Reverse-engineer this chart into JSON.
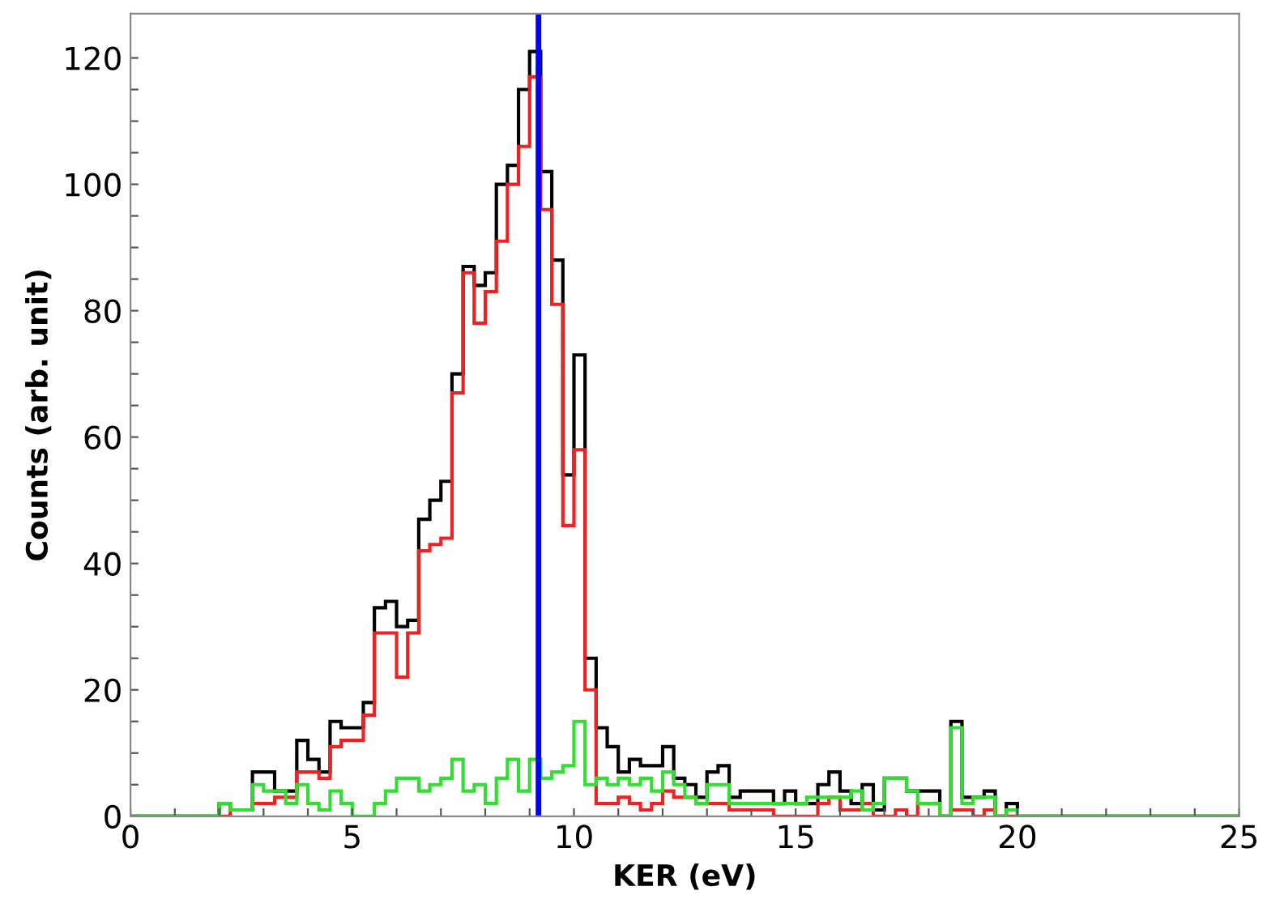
{
  "chart_data": {
    "type": "histogram",
    "xlabel": "KER (eV)",
    "ylabel": "Counts (arb. unit)",
    "bins": [
      0,
      0.25,
      0.5,
      0.75,
      1,
      1.25,
      1.5,
      1.75,
      2,
      2.25,
      2.5,
      2.75,
      3,
      3.25,
      3.5,
      3.75,
      4,
      4.25,
      4.5,
      4.75,
      5,
      5.25,
      5.5,
      5.75,
      6,
      6.25,
      6.5,
      6.75,
      7,
      7.25,
      7.5,
      7.75,
      8,
      8.25,
      8.5,
      8.75,
      9,
      9.25,
      9.5,
      9.75,
      10,
      10.25,
      10.5,
      10.75,
      11,
      11.25,
      11.5,
      11.75,
      12,
      12.25,
      12.5,
      12.75,
      13,
      13.25,
      13.5,
      13.75,
      14,
      14.25,
      14.5,
      14.75,
      15,
      15.25,
      15.5,
      15.75,
      16,
      16.25,
      16.5,
      16.75,
      17,
      17.25,
      17.5,
      17.75,
      18,
      18.25,
      18.5,
      18.75,
      19,
      19.25,
      19.5,
      19.75,
      20,
      20.25,
      20.5,
      20.75,
      21,
      21.25,
      21.5,
      21.75,
      22,
      22.25,
      22.5,
      22.75,
      23,
      23.25,
      23.5,
      23.75,
      24,
      24.25,
      24.5,
      24.75,
      25
    ],
    "series": [
      {
        "color": "#000000",
        "values": [
          0,
          0,
          0,
          0,
          0,
          0,
          0,
          0,
          2,
          1,
          1,
          7,
          7,
          4,
          4,
          12,
          9,
          7,
          15,
          14,
          14,
          18,
          33,
          34,
          30,
          31,
          47,
          50,
          53,
          70,
          87,
          84,
          86,
          100,
          103,
          115,
          121,
          102,
          88,
          54,
          73,
          25,
          14,
          11,
          7,
          9,
          8,
          8,
          11,
          6,
          5,
          3,
          7,
          8,
          3,
          4,
          4,
          4,
          2,
          4,
          2,
          2,
          5,
          7,
          4,
          2,
          5,
          1,
          6,
          6,
          4,
          4,
          4,
          0,
          15,
          3,
          3,
          4,
          0,
          2,
          0,
          0,
          0,
          0,
          0,
          0,
          0,
          0,
          0,
          0,
          0,
          0,
          0,
          0,
          0,
          0,
          0,
          0,
          0,
          0
        ]
      },
      {
        "color": "#ee2222",
        "values": [
          0,
          0,
          0,
          0,
          0,
          0,
          0,
          0,
          0,
          1,
          1,
          2,
          2,
          3,
          3,
          7,
          7,
          6,
          11,
          12,
          12,
          16,
          29,
          29,
          22,
          29,
          42,
          43,
          44,
          67,
          86,
          78,
          83,
          91,
          100,
          106,
          117,
          96,
          81,
          46,
          58,
          20,
          2,
          2,
          3,
          2,
          1,
          2,
          4,
          3,
          3,
          2,
          2,
          2,
          1,
          1,
          1,
          1,
          0,
          0,
          0,
          0,
          2,
          3,
          1,
          1,
          2,
          0,
          0,
          1,
          0,
          2,
          2,
          0,
          1,
          1,
          0,
          1,
          0,
          0,
          0,
          0,
          0,
          0,
          0,
          0,
          0,
          0,
          0,
          0,
          0,
          0,
          0,
          0,
          0,
          0,
          0,
          0,
          0,
          0
        ]
      },
      {
        "color": "#33dd33",
        "values": [
          0,
          0,
          0,
          0,
          0,
          0,
          0,
          0,
          2,
          1,
          1,
          5,
          4,
          4,
          2,
          5,
          2,
          1,
          4,
          2,
          0,
          0,
          2,
          4,
          6,
          6,
          4,
          5,
          6,
          9,
          4,
          5,
          2,
          6,
          9,
          4,
          9,
          6,
          7,
          8,
          15,
          5,
          6,
          5,
          6,
          5,
          6,
          4,
          7,
          5,
          3,
          2,
          5,
          5,
          2,
          2,
          2,
          2,
          2,
          2,
          2,
          3,
          3,
          3,
          3,
          4,
          1,
          2,
          6,
          6,
          4,
          2,
          2,
          0,
          14,
          2,
          3,
          3,
          0,
          1,
          0,
          0,
          0,
          0,
          0,
          0,
          0,
          0,
          0,
          0,
          0,
          0,
          0,
          0,
          0,
          0,
          0,
          0,
          0,
          0
        ]
      }
    ],
    "ref_lines": [
      {
        "axis": "x",
        "value": 9.2,
        "color": "#0000ff"
      }
    ],
    "xlim": [
      0,
      25
    ],
    "ylim": [
      0,
      127
    ],
    "xticks": [
      0,
      {
        "value": 1,
        "label": null
      },
      {
        "value": 2,
        "label": null
      },
      {
        "value": 3,
        "label": null
      },
      {
        "value": 4,
        "label": null
      },
      5,
      {
        "value": 6,
        "label": null
      },
      {
        "value": 7,
        "label": null
      },
      {
        "value": 8,
        "label": null
      },
      {
        "value": 9,
        "label": null
      },
      10,
      {
        "value": 11,
        "label": null
      },
      {
        "value": 12,
        "label": null
      },
      {
        "value": 13,
        "label": null
      },
      {
        "value": 14,
        "label": null
      },
      15,
      {
        "value": 16,
        "label": null
      },
      {
        "value": 17,
        "label": null
      },
      {
        "value": 18,
        "label": null
      },
      {
        "value": 19,
        "label": null
      },
      20,
      {
        "value": 21,
        "label": null
      },
      {
        "value": 22,
        "label": null
      },
      {
        "value": 23,
        "label": null
      },
      {
        "value": 24,
        "label": null
      },
      25
    ],
    "yticks": [
      0,
      {
        "value": 5,
        "label": null
      },
      {
        "value": 10,
        "label": null
      },
      {
        "value": 15,
        "label": null
      },
      20,
      {
        "value": 25,
        "label": null
      },
      {
        "value": 30,
        "label": null
      },
      {
        "value": 35,
        "label": null
      },
      40,
      {
        "value": 45,
        "label": null
      },
      {
        "value": 50,
        "label": null
      },
      {
        "value": 55,
        "label": null
      },
      60,
      {
        "value": 65,
        "label": null
      },
      {
        "value": 70,
        "label": null
      },
      {
        "value": 75,
        "label": null
      },
      80,
      {
        "value": 85,
        "label": null
      },
      {
        "value": 90,
        "label": null
      },
      {
        "value": 95,
        "label": null
      },
      100,
      {
        "value": 105,
        "label": null
      },
      {
        "value": 110,
        "label": null
      },
      {
        "value": 115,
        "label": null
      },
      120
    ],
    "grid": false
  }
}
